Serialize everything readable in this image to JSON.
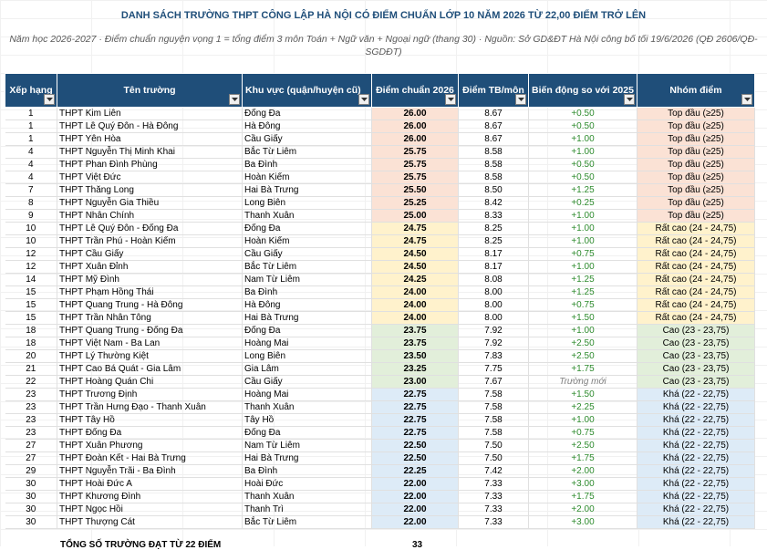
{
  "title": "DANH SÁCH TRƯỜNG THPT CÔNG LẬP HÀ NỘI CÓ ĐIỂM CHUẨN LỚP 10 NĂM 2026 TỪ 22,00 ĐIỂM TRỞ LÊN",
  "subtitle": "Năm học 2026-2027 · Điểm chuẩn nguyện vọng 1 = tổng điểm 3 môn Toán + Ngữ văn + Ngoại ngữ (thang 30) · Nguồn: Sở GD&ĐT Hà Nội công bố tối 19/6/2026 (QĐ 2606/QĐ-SGDĐT)",
  "headers": {
    "rank": "Xếp hạng",
    "school": "Tên trường",
    "district": "Khu vực (quận/huyện cũ)",
    "score": "Điểm chuẩn 2026",
    "avg": "Điểm TB/môn",
    "delta": "Biến động so với 2025",
    "group": "Nhóm điểm"
  },
  "colors": {
    "header_bg": "#1f4e79",
    "title": "#1f4e79",
    "top": "#fbe2d5",
    "rat_cao": "#fff2cc",
    "cao": "#e2efda",
    "kha": "#ddebf7",
    "delta_positive": "#2e8b2e"
  },
  "rows": [
    {
      "rank": "1",
      "school": "THPT Kim Liên",
      "district": "Đống Đa",
      "score": "26.00",
      "avg": "8.67",
      "delta": "+0.50",
      "group": "Top đầu (≥25)",
      "g": "top"
    },
    {
      "rank": "1",
      "school": "THPT Lê Quý Đôn - Hà Đông",
      "district": "Hà Đông",
      "score": "26.00",
      "avg": "8.67",
      "delta": "+0.50",
      "group": "Top đầu (≥25)",
      "g": "top"
    },
    {
      "rank": "1",
      "school": "THPT Yên Hòa",
      "district": "Cầu Giấy",
      "score": "26.00",
      "avg": "8.67",
      "delta": "+1.00",
      "group": "Top đầu (≥25)",
      "g": "top"
    },
    {
      "rank": "4",
      "school": "THPT Nguyễn Thị Minh Khai",
      "district": "Bắc Từ Liêm",
      "score": "25.75",
      "avg": "8.58",
      "delta": "+1.00",
      "group": "Top đầu (≥25)",
      "g": "top"
    },
    {
      "rank": "4",
      "school": "THPT Phan Đình Phùng",
      "district": "Ba Đình",
      "score": "25.75",
      "avg": "8.58",
      "delta": "+0.50",
      "group": "Top đầu (≥25)",
      "g": "top"
    },
    {
      "rank": "4",
      "school": "THPT Việt Đức",
      "district": "Hoàn Kiếm",
      "score": "25.75",
      "avg": "8.58",
      "delta": "+0.50",
      "group": "Top đầu (≥25)",
      "g": "top"
    },
    {
      "rank": "7",
      "school": "THPT Thăng Long",
      "district": "Hai Bà Trưng",
      "score": "25.50",
      "avg": "8.50",
      "delta": "+1.25",
      "group": "Top đầu (≥25)",
      "g": "top"
    },
    {
      "rank": "8",
      "school": "THPT Nguyễn Gia Thiều",
      "district": "Long Biên",
      "score": "25.25",
      "avg": "8.42",
      "delta": "+0.25",
      "group": "Top đầu (≥25)",
      "g": "top"
    },
    {
      "rank": "9",
      "school": "THPT Nhân Chính",
      "district": "Thanh Xuân",
      "score": "25.00",
      "avg": "8.33",
      "delta": "+1.00",
      "group": "Top đầu (≥25)",
      "g": "top"
    },
    {
      "rank": "10",
      "school": "THPT Lê Quý Đôn - Đống Đa",
      "district": "Đống Đa",
      "score": "24.75",
      "avg": "8.25",
      "delta": "+1.00",
      "group": "Rất cao (24 - 24,75)",
      "g": "rc"
    },
    {
      "rank": "10",
      "school": "THPT Trần Phú - Hoàn Kiếm",
      "district": "Hoàn Kiếm",
      "score": "24.75",
      "avg": "8.25",
      "delta": "+1.00",
      "group": "Rất cao (24 - 24,75)",
      "g": "rc"
    },
    {
      "rank": "12",
      "school": "THPT Cầu Giấy",
      "district": "Cầu Giấy",
      "score": "24.50",
      "avg": "8.17",
      "delta": "+0.75",
      "group": "Rất cao (24 - 24,75)",
      "g": "rc"
    },
    {
      "rank": "12",
      "school": "THPT Xuân Đỉnh",
      "district": "Bắc Từ Liêm",
      "score": "24.50",
      "avg": "8.17",
      "delta": "+1.00",
      "group": "Rất cao (24 - 24,75)",
      "g": "rc"
    },
    {
      "rank": "14",
      "school": "THPT Mỹ Đình",
      "district": "Nam Từ Liêm",
      "score": "24.25",
      "avg": "8.08",
      "delta": "+1.25",
      "group": "Rất cao (24 - 24,75)",
      "g": "rc"
    },
    {
      "rank": "15",
      "school": "THPT Phạm Hồng Thái",
      "district": "Ba Đình",
      "score": "24.00",
      "avg": "8.00",
      "delta": "+1.25",
      "group": "Rất cao (24 - 24,75)",
      "g": "rc"
    },
    {
      "rank": "15",
      "school": "THPT Quang Trung - Hà Đông",
      "district": "Hà Đông",
      "score": "24.00",
      "avg": "8.00",
      "delta": "+0.75",
      "group": "Rất cao (24 - 24,75)",
      "g": "rc"
    },
    {
      "rank": "15",
      "school": "THPT Trần Nhân Tông",
      "district": "Hai Bà Trưng",
      "score": "24.00",
      "avg": "8.00",
      "delta": "+1.50",
      "group": "Rất cao (24 - 24,75)",
      "g": "rc"
    },
    {
      "rank": "18",
      "school": "THPT Quang Trung - Đống Đa",
      "district": "Đống Đa",
      "score": "23.75",
      "avg": "7.92",
      "delta": "+1.00",
      "group": "Cao (23 - 23,75)",
      "g": "cao"
    },
    {
      "rank": "18",
      "school": "THPT Việt Nam - Ba Lan",
      "district": "Hoàng Mai",
      "score": "23.75",
      "avg": "7.92",
      "delta": "+2.50",
      "group": "Cao (23 - 23,75)",
      "g": "cao"
    },
    {
      "rank": "20",
      "school": "THPT Lý Thường Kiệt",
      "district": "Long Biên",
      "score": "23.50",
      "avg": "7.83",
      "delta": "+2.50",
      "group": "Cao (23 - 23,75)",
      "g": "cao"
    },
    {
      "rank": "21",
      "school": "THPT Cao Bá Quát - Gia Lâm",
      "district": "Gia Lâm",
      "score": "23.25",
      "avg": "7.75",
      "delta": "+1.75",
      "group": "Cao (23 - 23,75)",
      "g": "cao"
    },
    {
      "rank": "22",
      "school": "THPT Hoàng Quán Chi",
      "district": "Cầu Giấy",
      "score": "23.00",
      "avg": "7.67",
      "delta": "Trường mới",
      "group": "Cao (23 - 23,75)",
      "g": "cao"
    },
    {
      "rank": "23",
      "school": "THPT Trương Định",
      "district": "Hoàng Mai",
      "score": "22.75",
      "avg": "7.58",
      "delta": "+1.50",
      "group": "Khá (22 - 22,75)",
      "g": "kha"
    },
    {
      "rank": "23",
      "school": "THPT Trần Hưng Đạo - Thanh Xuân",
      "district": "Thanh Xuân",
      "score": "22.75",
      "avg": "7.58",
      "delta": "+2.25",
      "group": "Khá (22 - 22,75)",
      "g": "kha"
    },
    {
      "rank": "23",
      "school": "THPT Tây Hồ",
      "district": "Tây Hồ",
      "score": "22.75",
      "avg": "7.58",
      "delta": "+1.00",
      "group": "Khá (22 - 22,75)",
      "g": "kha"
    },
    {
      "rank": "23",
      "school": "THPT Đống Đa",
      "district": "Đống Đa",
      "score": "22.75",
      "avg": "7.58",
      "delta": "+0.75",
      "group": "Khá (22 - 22,75)",
      "g": "kha"
    },
    {
      "rank": "27",
      "school": "THPT Xuân Phương",
      "district": "Nam Từ Liêm",
      "score": "22.50",
      "avg": "7.50",
      "delta": "+2.50",
      "group": "Khá (22 - 22,75)",
      "g": "kha"
    },
    {
      "rank": "27",
      "school": "THPT Đoàn Kết - Hai Bà Trưng",
      "district": "Hai Bà Trưng",
      "score": "22.50",
      "avg": "7.50",
      "delta": "+1.75",
      "group": "Khá (22 - 22,75)",
      "g": "kha"
    },
    {
      "rank": "29",
      "school": "THPT Nguyễn Trãi - Ba Đình",
      "district": "Ba Đình",
      "score": "22.25",
      "avg": "7.42",
      "delta": "+2.00",
      "group": "Khá (22 - 22,75)",
      "g": "kha"
    },
    {
      "rank": "30",
      "school": "THPT Hoài Đức A",
      "district": "Hoài Đức",
      "score": "22.00",
      "avg": "7.33",
      "delta": "+3.00",
      "group": "Khá (22 - 22,75)",
      "g": "kha"
    },
    {
      "rank": "30",
      "school": "THPT Khương Đình",
      "district": "Thanh Xuân",
      "score": "22.00",
      "avg": "7.33",
      "delta": "+1.75",
      "group": "Khá (22 - 22,75)",
      "g": "kha"
    },
    {
      "rank": "30",
      "school": "THPT Ngọc Hồi",
      "district": "Thanh Trì",
      "score": "22.00",
      "avg": "7.33",
      "delta": "+2.00",
      "group": "Khá (22 - 22,75)",
      "g": "kha"
    },
    {
      "rank": "30",
      "school": "THPT Thượng Cát",
      "district": "Bắc Từ Liêm",
      "score": "22.00",
      "avg": "7.33",
      "delta": "+3.00",
      "group": "Khá (22 - 22,75)",
      "g": "kha"
    }
  ],
  "total": {
    "label": "TỔNG SỐ TRƯỜNG ĐẠT TỪ 22 ĐIỂM",
    "value": "33"
  }
}
